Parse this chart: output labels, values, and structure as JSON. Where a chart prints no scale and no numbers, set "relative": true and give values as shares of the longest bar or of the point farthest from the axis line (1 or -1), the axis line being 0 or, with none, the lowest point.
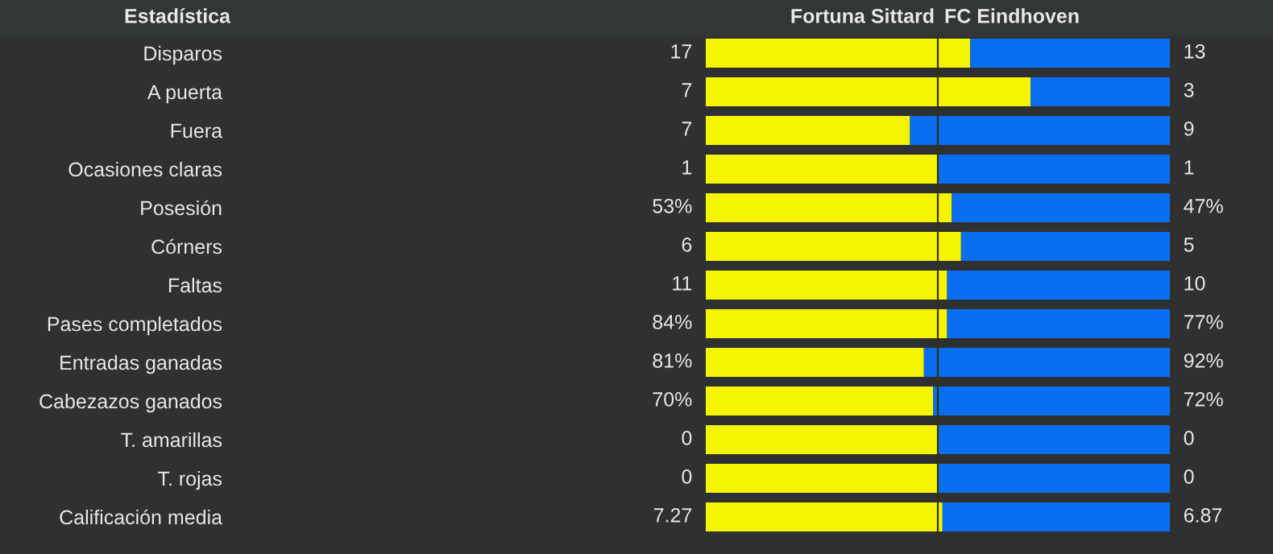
{
  "chart_data": {
    "type": "bar",
    "orientation": "horizontal",
    "stacked": true,
    "relative": true,
    "legend": false,
    "grid": false,
    "ylabel": "Estadística",
    "categories": [
      "Disparos",
      "A puerta",
      "Fuera",
      "Ocasiones claras",
      "Posesión",
      "Córners",
      "Faltas",
      "Pases completados",
      "Entradas ganadas",
      "Cabezazos ganados",
      "T. amarillas",
      "T. rojas",
      "Calificación media"
    ],
    "series": [
      {
        "name": "Fortuna Sittard",
        "color": "#f5f500",
        "values": [
          0.57,
          0.7,
          0.44,
          0.5,
          0.53,
          0.55,
          0.52,
          0.52,
          0.47,
          0.49,
          0.5,
          0.5,
          0.51
        ]
      },
      {
        "name": "FC Eindhoven",
        "color": "#0a6ef0",
        "values": [
          0.43,
          0.3,
          0.56,
          0.5,
          0.47,
          0.45,
          0.48,
          0.48,
          0.53,
          0.51,
          0.5,
          0.5,
          0.49
        ]
      }
    ],
    "annotations": [
      "17",
      "13",
      "7",
      "3",
      "7",
      "9",
      "1",
      "1",
      "53%",
      "47%",
      "6",
      "5",
      "11",
      "10",
      "84%",
      "77%",
      "81%",
      "92%",
      "70%",
      "72%",
      "0",
      "0",
      "0",
      "0",
      "7.27",
      "6.87"
    ],
    "ref_lines": [
      {
        "axis": "x",
        "value": 0.5,
        "color": "#333300"
      }
    ]
  }
}
